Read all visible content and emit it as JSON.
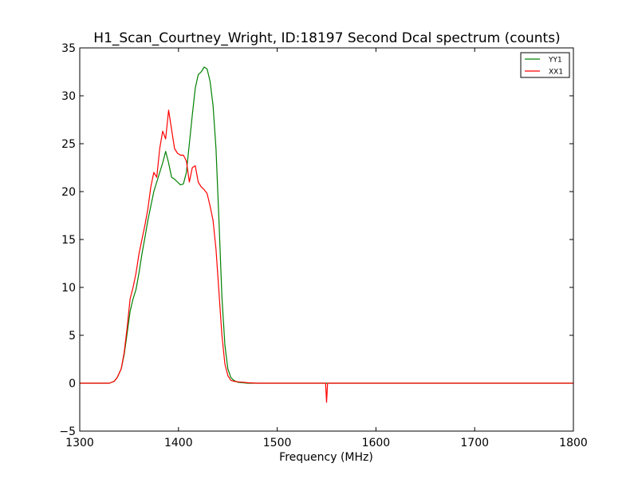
{
  "chart_data": {
    "type": "line",
    "title": "H1_Scan_Courtney_Wright, ID:18197 Second Dcal spectrum (counts)",
    "xlabel": "Frequency (MHz)",
    "ylabel": "",
    "xlim": [
      1300,
      1800
    ],
    "ylim": [
      -5,
      35
    ],
    "xticks": [
      1300,
      1400,
      1500,
      1600,
      1700,
      1800
    ],
    "yticks": [
      -5,
      0,
      5,
      10,
      15,
      20,
      25,
      30,
      35
    ],
    "grid": false,
    "legend_position": "top-right",
    "series": [
      {
        "name": "YY1",
        "color": "#008000",
        "x": [
          1300,
          1330,
          1335,
          1338,
          1342,
          1345,
          1348,
          1351,
          1354,
          1357,
          1360,
          1363,
          1366,
          1369,
          1372,
          1375,
          1378,
          1381,
          1384,
          1387,
          1390,
          1393,
          1396,
          1399,
          1402,
          1405,
          1408,
          1411,
          1414,
          1417,
          1420,
          1423,
          1426,
          1429,
          1432,
          1435,
          1438,
          1441,
          1444,
          1447,
          1450,
          1453,
          1456,
          1460,
          1465,
          1470,
          1480,
          1500,
          1550,
          1600,
          1650,
          1700,
          1750,
          1800
        ],
        "y": [
          0,
          0,
          0.2,
          0.6,
          1.5,
          3.0,
          5.2,
          7.5,
          8.8,
          9.8,
          11.5,
          13.5,
          15.2,
          17.0,
          18.5,
          20.0,
          21.0,
          22.0,
          23.0,
          24.2,
          23.0,
          21.5,
          21.3,
          21.0,
          20.7,
          20.8,
          22.0,
          25.0,
          28.0,
          30.8,
          32.2,
          32.5,
          33.0,
          32.8,
          31.5,
          29.0,
          24.5,
          17.0,
          9.0,
          4.0,
          1.5,
          0.6,
          0.3,
          0.1,
          0.05,
          0,
          0,
          0,
          0,
          0,
          0,
          0,
          0,
          0
        ]
      },
      {
        "name": "XX1",
        "color": "#ff0000",
        "x": [
          1300,
          1330,
          1335,
          1338,
          1342,
          1345,
          1348,
          1351,
          1354,
          1357,
          1360,
          1363,
          1366,
          1369,
          1372,
          1375,
          1378,
          1381,
          1384,
          1387,
          1390,
          1393,
          1396,
          1399,
          1402,
          1405,
          1408,
          1411,
          1414,
          1417,
          1420,
          1423,
          1426,
          1429,
          1432,
          1435,
          1438,
          1441,
          1444,
          1447,
          1450,
          1453,
          1456,
          1460,
          1465,
          1470,
          1480,
          1500,
          1540,
          1549,
          1550,
          1551,
          1560,
          1600,
          1650,
          1700,
          1750,
          1800
        ],
        "y": [
          0,
          0,
          0.2,
          0.6,
          1.5,
          3.2,
          5.8,
          8.8,
          10.0,
          11.5,
          13.5,
          15.0,
          16.5,
          18.2,
          20.5,
          22.0,
          21.5,
          24.5,
          26.3,
          25.5,
          28.5,
          26.5,
          24.5,
          24.0,
          23.8,
          23.8,
          23.2,
          21.0,
          22.5,
          22.7,
          21.0,
          20.5,
          20.2,
          19.8,
          18.5,
          17.0,
          14.0,
          9.5,
          5.0,
          2.0,
          0.8,
          0.3,
          0.2,
          0.15,
          0.1,
          0.05,
          0,
          0,
          0,
          0,
          -2.0,
          0,
          0,
          0,
          0,
          0,
          0,
          0
        ]
      }
    ]
  }
}
